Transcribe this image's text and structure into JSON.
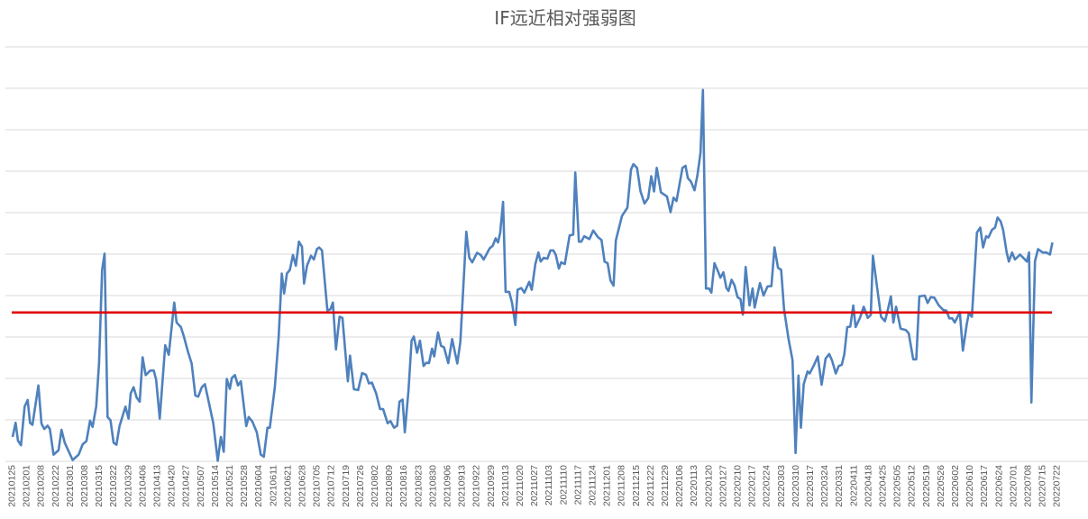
{
  "chart_data": {
    "type": "line",
    "title": "IF远近相对强弱图",
    "xlabel": "",
    "ylabel": "",
    "ylim": [
      0,
      10
    ],
    "grid": true,
    "legend": "none",
    "colors": {
      "series": "#4F81BD",
      "reference": "#E00000",
      "grid": "#D9D9D9",
      "text": "#595959"
    },
    "categories": [
      "20210125",
      "20210201",
      "20210208",
      "20210222",
      "20210301",
      "20210308",
      "20210315",
      "20210322",
      "20210329",
      "20210406",
      "20210413",
      "20210420",
      "20210427",
      "20210507",
      "20210514",
      "20210521",
      "20210528",
      "20210604",
      "20210611",
      "20210621",
      "20210628",
      "20210705",
      "20210712",
      "20210719",
      "20210726",
      "20210802",
      "20210809",
      "20210816",
      "20210823",
      "20210830",
      "20210906",
      "20210913",
      "20210922",
      "20210929",
      "20211013",
      "20211020",
      "20211027",
      "20211103",
      "20211110",
      "20211117",
      "20211124",
      "20211201",
      "20211208",
      "20211215",
      "20211222",
      "20211229",
      "20220106",
      "20220113",
      "20220120",
      "20220127",
      "20220210",
      "20220217",
      "20220224",
      "20220303",
      "20220310",
      "20220317",
      "20220324",
      "20220331",
      "20220411",
      "20220418",
      "20220425",
      "20220505",
      "20220512",
      "20220519",
      "20220526",
      "20220602",
      "20220610",
      "20220617",
      "20220624",
      "20220701",
      "20220708",
      "20220715",
      "20220722"
    ],
    "series": [
      {
        "name": "IF远近相对强弱",
        "x": [
          0.06,
          0.27,
          0.43,
          0.64,
          0.89,
          1.1,
          1.26,
          1.43,
          1.84,
          2.05,
          2.25,
          2.47,
          2.63,
          2.88,
          3.23,
          3.43,
          3.65,
          3.91,
          4.2,
          4.61,
          4.89,
          5.15,
          5.4,
          5.57,
          5.82,
          6.02,
          6.23,
          6.4,
          6.6,
          6.81,
          7.02,
          7.22,
          7.43,
          7.84,
          8.05,
          8.2,
          8.4,
          8.61,
          8.82,
          9.02,
          9.23,
          9.54,
          9.79,
          9.95,
          10.2,
          10.58,
          10.82,
          11.2,
          11.36,
          11.66,
          11.86,
          12.13,
          12.4,
          12.65,
          12.85,
          13.1,
          13.31,
          13.58,
          13.89,
          14.2,
          14.41,
          14.61,
          14.82,
          15.03,
          15.17,
          15.38,
          15.59,
          15.79,
          16.16,
          16.33,
          16.58,
          16.89,
          17.16,
          17.37,
          17.62,
          17.78,
          18.13,
          18.4,
          18.61,
          18.77,
          18.96,
          19.17,
          19.38,
          19.58,
          19.79,
          20.0,
          20.14,
          20.35,
          20.62,
          20.82,
          21.03,
          21.18,
          21.38,
          21.75,
          21.96,
          22.13,
          22.34,
          22.59,
          22.79,
          23.16,
          23.31,
          23.58,
          23.87,
          24.14,
          24.41,
          24.61,
          24.82,
          25.11,
          25.38,
          25.59,
          25.9,
          26.1,
          26.35,
          26.56,
          26.72,
          26.93,
          27.09,
          27.34,
          27.55,
          27.71,
          27.93,
          28.13,
          28.38,
          28.58,
          28.75,
          28.96,
          29.11,
          29.37,
          29.58,
          29.79,
          30.08,
          30.35,
          30.7,
          30.91,
          31.32,
          31.53,
          31.73,
          32.06,
          32.31,
          32.52,
          32.93,
          33.14,
          33.35,
          33.51,
          33.66,
          33.86,
          34.03,
          34.28,
          34.48,
          34.7,
          34.86,
          35.11,
          35.32,
          35.66,
          35.83,
          36.08,
          36.29,
          36.45,
          36.66,
          36.91,
          37.12,
          37.32,
          37.49,
          37.7,
          37.86,
          38.11,
          38.44,
          38.69,
          38.83,
          39.08,
          39.25,
          39.45,
          39.81,
          40.07,
          40.39,
          40.64,
          40.85,
          41.06,
          41.26,
          41.47,
          41.63,
          42.05,
          42.42,
          42.67,
          42.84,
          43.09,
          43.33,
          43.6,
          43.86,
          44.07,
          44.26,
          44.45,
          44.73,
          45.15,
          45.4,
          45.6,
          45.81,
          46.22,
          46.43,
          46.59,
          46.8,
          47.05,
          47.26,
          47.46,
          47.63,
          47.84,
          48.05,
          48.21,
          48.42,
          48.67,
          48.83,
          49.04,
          49.25,
          49.39,
          49.6,
          49.8,
          50.01,
          50.22,
          50.38,
          50.57,
          50.84,
          51.05,
          51.19,
          51.56,
          51.81,
          52.08,
          52.35,
          52.56,
          52.8,
          53.02,
          53.22,
          53.53,
          53.8,
          54.01,
          54.21,
          54.38,
          54.57,
          54.84,
          54.98,
          55.29,
          55.54,
          55.81,
          56.08,
          56.33,
          56.53,
          56.78,
          56.99,
          57.2,
          57.37,
          57.57,
          57.78,
          57.99,
          58.15,
          58.45,
          58.71,
          58.99,
          59.19,
          59.34,
          59.61,
          59.9,
          60.17,
          60.38,
          60.58,
          60.75,
          60.94,
          61.25,
          61.6,
          61.81,
          62.12,
          62.33,
          62.54,
          62.91,
          63.11,
          63.32,
          63.57,
          63.88,
          64.19,
          64.4,
          64.6,
          64.81,
          64.98,
          65.33,
          65.54,
          65.81,
          65.95,
          66.16,
          66.51,
          66.74,
          66.93,
          67.14,
          67.3,
          67.55,
          67.76,
          67.93,
          68.14,
          68.31,
          68.55,
          68.71,
          68.93,
          69.13,
          69.48,
          69.68,
          69.95,
          70.1,
          70.26,
          70.51,
          70.72,
          71.03,
          71.28,
          71.54,
          71.71
        ],
        "y": [
          0.59,
          0.93,
          0.5,
          0.39,
          1.32,
          1.48,
          0.93,
          0.88,
          1.83,
          0.91,
          0.78,
          0.86,
          0.78,
          0.16,
          0.27,
          0.76,
          0.45,
          0.25,
          0.03,
          0.16,
          0.41,
          0.49,
          0.98,
          0.83,
          1.32,
          2.37,
          4.62,
          5.01,
          1.07,
          0.99,
          0.45,
          0.4,
          0.85,
          1.32,
          1.03,
          1.64,
          1.79,
          1.54,
          1.44,
          2.51,
          2.08,
          2.19,
          2.19,
          1.97,
          1.03,
          2.8,
          2.57,
          3.83,
          3.35,
          3.24,
          3.02,
          2.66,
          2.36,
          1.59,
          1.56,
          1.79,
          1.86,
          1.43,
          0.92,
          0.01,
          0.59,
          0.23,
          1.99,
          1.75,
          2.01,
          2.08,
          1.83,
          1.93,
          0.85,
          1.07,
          0.96,
          0.7,
          0.16,
          0.11,
          0.81,
          0.81,
          1.79,
          3.02,
          4.53,
          4.05,
          4.53,
          4.62,
          4.98,
          4.72,
          5.3,
          5.18,
          4.29,
          4.72,
          4.96,
          4.87,
          5.12,
          5.16,
          5.09,
          3.64,
          3.67,
          3.83,
          2.7,
          3.49,
          3.46,
          1.93,
          2.55,
          1.74,
          1.72,
          2.13,
          2.09,
          1.88,
          1.9,
          1.64,
          1.26,
          1.26,
          0.92,
          0.97,
          0.81,
          0.86,
          1.44,
          1.49,
          0.7,
          1.72,
          2.91,
          3.01,
          2.62,
          2.91,
          2.3,
          2.38,
          2.37,
          2.72,
          2.53,
          3.11,
          2.79,
          2.75,
          2.37,
          2.95,
          2.36,
          2.88,
          5.54,
          4.91,
          4.8,
          5.03,
          4.98,
          4.87,
          5.14,
          5.2,
          5.38,
          5.28,
          5.52,
          6.26,
          4.09,
          4.09,
          3.82,
          3.29,
          4.14,
          4.18,
          4.07,
          4.33,
          4.14,
          4.76,
          5.04,
          4.82,
          4.91,
          4.89,
          5.09,
          5.09,
          4.98,
          4.65,
          4.8,
          4.76,
          5.45,
          5.47,
          6.97,
          5.3,
          5.3,
          5.43,
          5.36,
          5.57,
          5.41,
          5.34,
          4.82,
          4.78,
          4.36,
          4.24,
          5.33,
          5.92,
          6.12,
          7.04,
          7.17,
          7.08,
          6.51,
          6.22,
          6.35,
          6.88,
          6.51,
          7.08,
          6.49,
          6.39,
          6.01,
          6.36,
          6.28,
          7.08,
          7.13,
          6.83,
          6.75,
          6.54,
          6.93,
          7.44,
          8.96,
          4.17,
          4.17,
          4.07,
          4.78,
          4.58,
          4.43,
          4.56,
          4.18,
          4.11,
          4.38,
          4.25,
          3.96,
          3.91,
          3.54,
          4.69,
          3.76,
          4.17,
          3.71,
          4.3,
          4.0,
          4.22,
          4.23,
          5.16,
          4.67,
          4.62,
          3.67,
          2.95,
          2.44,
          0.2,
          2.07,
          0.81,
          1.86,
          2.17,
          2.12,
          2.33,
          2.53,
          1.85,
          2.48,
          2.59,
          2.43,
          2.12,
          2.3,
          2.33,
          2.59,
          3.24,
          3.25,
          3.76,
          3.24,
          3.46,
          3.73,
          3.46,
          3.53,
          4.96,
          4.25,
          3.49,
          3.38,
          3.67,
          3.98,
          3.35,
          3.73,
          3.2,
          3.17,
          3.09,
          2.46,
          2.46,
          3.98,
          4.0,
          3.82,
          3.96,
          3.95,
          3.76,
          3.65,
          3.64,
          3.45,
          3.45,
          3.35,
          3.6,
          2.67,
          3.31,
          3.57,
          3.49,
          5.52,
          5.64,
          5.16,
          5.43,
          5.4,
          5.59,
          5.64,
          5.88,
          5.79,
          5.59,
          5.05,
          4.82,
          5.04,
          4.87,
          4.99,
          4.92,
          4.82,
          5.04,
          1.42,
          4.83,
          5.12,
          5.04,
          5.04,
          4.99,
          5.28
        ]
      }
    ],
    "reference_line": {
      "value": 3.59,
      "x_range": [
        0,
        71.68
      ]
    }
  }
}
